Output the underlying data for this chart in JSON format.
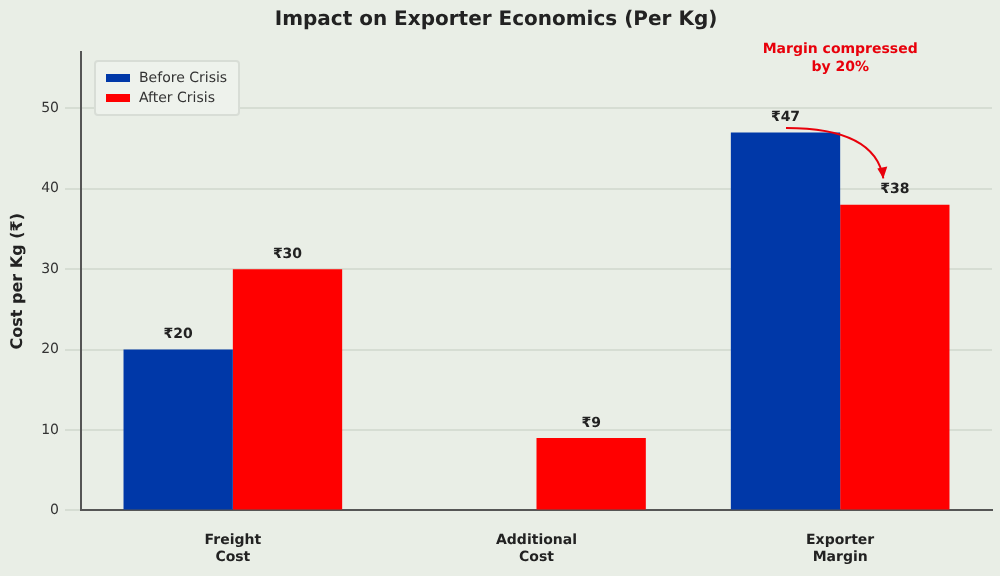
{
  "chart_data": {
    "type": "bar",
    "title": "Impact on Exporter Economics (Per Kg)",
    "ylabel": "Cost per Kg (₹)",
    "categories": [
      "Freight\nCost",
      "Additional\nCost",
      "Exporter\nMargin"
    ],
    "series": [
      {
        "name": "Before Crisis",
        "color": "#0038a8",
        "values": [
          20,
          0,
          47
        ],
        "value_labels": [
          "₹20",
          null,
          "₹47"
        ]
      },
      {
        "name": "After Crisis",
        "color": "#ff0000",
        "values": [
          30,
          9,
          38
        ],
        "value_labels": [
          "₹30",
          "₹9",
          "₹38"
        ]
      }
    ],
    "ylim": [
      0,
      57
    ],
    "yticks": [
      0,
      10,
      20,
      30,
      40,
      50
    ],
    "grid": "y",
    "legend": "top left",
    "annotations": [
      "Margin compressed by 20%"
    ]
  }
}
